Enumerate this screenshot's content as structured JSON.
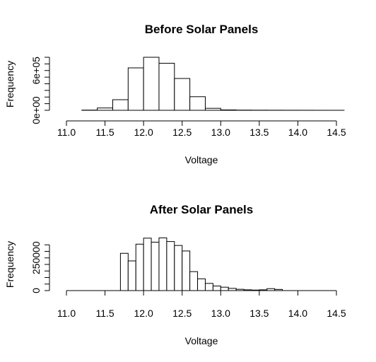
{
  "chart_data": [
    {
      "type": "bar",
      "title": "Before Solar Panels",
      "xlabel": "Voltage",
      "ylabel": "Frequency",
      "xlim": [
        11.0,
        14.5
      ],
      "xticks": [
        "11.0",
        "11.5",
        "12.0",
        "12.5",
        "13.0",
        "13.5",
        "14.0",
        "14.5"
      ],
      "ylim": [
        0,
        800000
      ],
      "yticks": [
        {
          "value": 0,
          "label": "0e+00"
        },
        {
          "value": 100000,
          "label": ""
        },
        {
          "value": 200000,
          "label": ""
        },
        {
          "value": 300000,
          "label": ""
        },
        {
          "value": 400000,
          "label": ""
        },
        {
          "value": 500000,
          "label": ""
        },
        {
          "value": 600000,
          "label": "6e+05"
        },
        {
          "value": 700000,
          "label": ""
        },
        {
          "value": 800000,
          "label": ""
        }
      ],
      "bin_width": 0.2,
      "bins": [
        {
          "x0": 11.0,
          "count": 0
        },
        {
          "x0": 11.2,
          "count": 3000
        },
        {
          "x0": 11.4,
          "count": 35000
        },
        {
          "x0": 11.6,
          "count": 160000
        },
        {
          "x0": 11.8,
          "count": 640000
        },
        {
          "x0": 12.0,
          "count": 800000
        },
        {
          "x0": 12.2,
          "count": 710000
        },
        {
          "x0": 12.4,
          "count": 480000
        },
        {
          "x0": 12.6,
          "count": 205000
        },
        {
          "x0": 12.8,
          "count": 30000
        },
        {
          "x0": 13.0,
          "count": 6000
        },
        {
          "x0": 13.2,
          "count": 3000
        },
        {
          "x0": 13.4,
          "count": 2000
        },
        {
          "x0": 13.6,
          "count": 1500
        },
        {
          "x0": 13.8,
          "count": 1000
        },
        {
          "x0": 14.0,
          "count": 800
        },
        {
          "x0": 14.2,
          "count": 500
        },
        {
          "x0": 14.4,
          "count": 300
        }
      ]
    },
    {
      "type": "bar",
      "title": "After Solar Panels",
      "xlabel": "Voltage",
      "ylabel": "Frequency",
      "xlim": [
        11.0,
        14.5
      ],
      "xticks": [
        "11.0",
        "11.5",
        "12.0",
        "12.5",
        "13.0",
        "13.5",
        "14.0",
        "14.5"
      ],
      "ylim": [
        0,
        400000
      ],
      "yticks": [
        {
          "value": 0,
          "label": "0"
        },
        {
          "value": 50000,
          "label": ""
        },
        {
          "value": 100000,
          "label": ""
        },
        {
          "value": 150000,
          "label": ""
        },
        {
          "value": 200000,
          "label": ""
        },
        {
          "value": 250000,
          "label": "250000"
        },
        {
          "value": 300000,
          "label": ""
        },
        {
          "value": 350000,
          "label": ""
        }
      ],
      "bin_width": 0.1,
      "bins": [
        {
          "x0": 11.7,
          "count": 285000
        },
        {
          "x0": 11.8,
          "count": 227000
        },
        {
          "x0": 11.9,
          "count": 355000
        },
        {
          "x0": 12.0,
          "count": 401000
        },
        {
          "x0": 12.1,
          "count": 370000
        },
        {
          "x0": 12.2,
          "count": 403000
        },
        {
          "x0": 12.3,
          "count": 375000
        },
        {
          "x0": 12.4,
          "count": 345000
        },
        {
          "x0": 12.5,
          "count": 303000
        },
        {
          "x0": 12.6,
          "count": 145000
        },
        {
          "x0": 12.7,
          "count": 90000
        },
        {
          "x0": 12.8,
          "count": 55000
        },
        {
          "x0": 12.9,
          "count": 35000
        },
        {
          "x0": 13.0,
          "count": 26000
        },
        {
          "x0": 13.1,
          "count": 17000
        },
        {
          "x0": 13.2,
          "count": 10000
        },
        {
          "x0": 13.3,
          "count": 6000
        },
        {
          "x0": 13.4,
          "count": 4000
        },
        {
          "x0": 13.5,
          "count": 6000
        },
        {
          "x0": 13.6,
          "count": 15000
        },
        {
          "x0": 13.7,
          "count": 9000
        }
      ]
    }
  ]
}
